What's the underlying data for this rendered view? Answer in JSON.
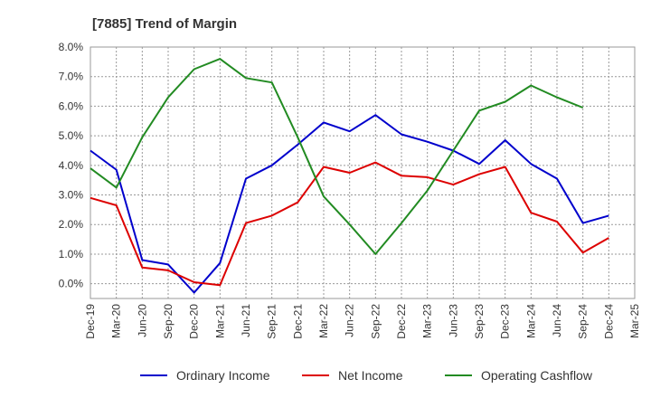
{
  "chart_data": {
    "type": "line",
    "title": "[7885]  Trend of Margin",
    "xlabel": "",
    "ylabel": "",
    "ylim": [
      -0.5,
      8.0
    ],
    "yticks": [
      "8.0%",
      "7.0%",
      "6.0%",
      "5.0%",
      "4.0%",
      "3.0%",
      "2.0%",
      "1.0%",
      "0.0%"
    ],
    "ytick_values": [
      8,
      7,
      6,
      5,
      4,
      3,
      2,
      1,
      0
    ],
    "categories": [
      "Dec-19",
      "Mar-20",
      "Jun-20",
      "Sep-20",
      "Dec-20",
      "Mar-21",
      "Jun-21",
      "Sep-21",
      "Dec-21",
      "Mar-22",
      "Jun-22",
      "Sep-22",
      "Dec-22",
      "Mar-23",
      "Jun-23",
      "Sep-23",
      "Dec-23",
      "Mar-24",
      "Jun-24",
      "Sep-24",
      "Dec-24",
      "Mar-25"
    ],
    "grid": true,
    "legend_position": "bottom",
    "series": [
      {
        "name": "Ordinary Income",
        "color": "#0000cc",
        "values": [
          4.5,
          3.85,
          0.8,
          0.65,
          -0.3,
          0.7,
          3.55,
          4.0,
          4.7,
          5.45,
          5.15,
          5.7,
          5.05,
          4.8,
          4.5,
          4.05,
          4.85,
          4.05,
          3.55,
          2.05,
          2.3,
          null
        ]
      },
      {
        "name": "Net Income",
        "color": "#dd0000",
        "values": [
          2.9,
          2.65,
          0.55,
          0.45,
          0.05,
          -0.05,
          2.05,
          2.3,
          2.75,
          3.95,
          3.75,
          4.1,
          3.65,
          3.6,
          3.35,
          3.7,
          3.95,
          2.4,
          2.1,
          1.05,
          1.55,
          null
        ]
      },
      {
        "name": "Operating Cashflow",
        "color": "#228B22",
        "values": [
          3.9,
          3.25,
          4.95,
          6.3,
          7.25,
          7.6,
          6.95,
          6.8,
          4.95,
          2.95,
          2.0,
          1.0,
          2.05,
          3.15,
          4.5,
          5.85,
          6.15,
          6.7,
          6.3,
          5.95,
          null,
          null
        ]
      }
    ]
  }
}
